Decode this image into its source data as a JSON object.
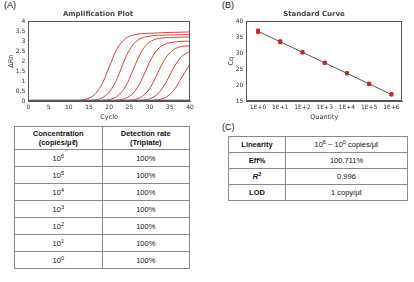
{
  "panel_labels": [
    "(A)",
    "(B)",
    "(C)"
  ],
  "chart_data": [
    {
      "type": "line",
      "title": "Amplification Plot",
      "xlabel": "Cycle",
      "ylabel": "ΔRn",
      "x": [
        0,
        2,
        4,
        6,
        8,
        10,
        12,
        14,
        16,
        18,
        20,
        22,
        24,
        26,
        28,
        30,
        32,
        34,
        36,
        38,
        40
      ],
      "xlim": [
        0,
        40
      ],
      "xticks": [
        0,
        5,
        10,
        15,
        20,
        25,
        30,
        35,
        40
      ],
      "ylim": [
        0,
        4
      ],
      "yticks": [
        0,
        0.5,
        1,
        1.5,
        2,
        2.5,
        3,
        3.5,
        4
      ],
      "grid": false,
      "series": [
        {
          "color": "#e03c3c",
          "values": [
            0,
            0,
            0,
            0,
            0,
            0,
            0.02,
            0.08,
            0.26,
            0.76,
            1.7,
            2.64,
            3.14,
            3.32,
            3.38,
            3.4,
            3.42,
            3.44,
            3.45,
            3.46,
            3.47
          ]
        },
        {
          "color": "#e03c3c",
          "values": [
            0,
            0,
            0,
            0,
            0,
            0,
            0,
            0,
            0.04,
            0.14,
            0.44,
            1.15,
            2.15,
            2.86,
            3.16,
            3.26,
            3.3,
            3.31,
            3.32,
            3.33,
            3.34
          ]
        },
        {
          "color": "#e03c3c",
          "values": [
            0,
            0,
            0,
            0,
            0,
            0,
            0,
            0,
            0,
            0.02,
            0.07,
            0.24,
            0.71,
            1.6,
            2.49,
            2.96,
            3.13,
            3.18,
            3.2,
            3.21,
            3.22
          ]
        },
        {
          "color": "#e03c3c",
          "values": [
            0,
            0,
            0,
            0,
            0,
            0,
            0,
            0,
            0,
            0,
            0,
            0.04,
            0.13,
            0.4,
            1.05,
            1.95,
            2.6,
            2.87,
            2.96,
            3.0,
            3.01
          ]
        },
        {
          "color": "#e03c3c",
          "values": [
            0,
            0,
            0,
            0,
            0,
            0,
            0,
            0,
            0,
            0,
            0,
            0,
            0.02,
            0.06,
            0.21,
            0.62,
            1.4,
            2.18,
            2.59,
            2.74,
            2.78
          ]
        },
        {
          "color": "#e03c3c",
          "values": [
            0,
            0,
            0,
            0,
            0,
            0,
            0,
            0,
            0,
            0,
            0,
            0,
            0,
            0,
            0.03,
            0.11,
            0.35,
            0.91,
            1.69,
            2.25,
            2.49
          ]
        },
        {
          "color": "#e03c3c",
          "values": [
            0,
            0,
            0,
            0,
            0,
            0,
            0,
            0,
            0,
            0,
            0,
            0,
            0,
            0,
            0,
            0.02,
            0.06,
            0.18,
            0.54,
            1.2,
            1.86
          ]
        },
        {
          "color": "#2a2ab8",
          "values": [
            0.04,
            0.04,
            0.04,
            0.04,
            0.04,
            0.04,
            0.04,
            0.04,
            0.04,
            0.04,
            0.04,
            0.04,
            0.04,
            0.04,
            0.04,
            0.04,
            0.04,
            0.04,
            0.04,
            0.04,
            0.04
          ]
        }
      ]
    },
    {
      "type": "scatter",
      "title": "Standard Curve",
      "xlabel": "Quantity",
      "ylabel": "Cq",
      "log": "x",
      "xlim": [
        0.3,
        3000000
      ],
      "xticks": [
        {
          "value": 1,
          "label": "1E+0"
        },
        {
          "value": 10,
          "label": "1E+1"
        },
        {
          "value": 100,
          "label": "1E+2"
        },
        {
          "value": 1000,
          "label": "1E+3"
        },
        {
          "value": 10000,
          "label": "1E+4"
        },
        {
          "value": 100000,
          "label": "1E+5"
        },
        {
          "value": 1000000,
          "label": "1E+6"
        }
      ],
      "ylim": [
        15,
        40
      ],
      "yticks": [
        15,
        20,
        25,
        30,
        35,
        40
      ],
      "grid": false,
      "series": [
        {
          "type": "line",
          "color": "#555555",
          "line_style": "solid",
          "x": [
            1,
            1000000
          ],
          "values": [
            36.9,
            17.06
          ]
        },
        {
          "type": "scatter",
          "color": "#e02020",
          "marker": "square",
          "x": [
            1,
            1,
            1,
            10,
            10,
            10,
            100,
            100,
            100,
            1000,
            1000,
            1000,
            10000,
            10000,
            10000,
            100000,
            100000,
            100000,
            1000000,
            1000000,
            1000000
          ],
          "values": [
            37.2,
            36.6,
            36.9,
            33.5,
            33.8,
            33.4,
            30.4,
            30.2,
            30.3,
            27.0,
            27.1,
            26.9,
            23.7,
            23.6,
            23.8,
            20.4,
            20.3,
            20.5,
            17.1,
            17.0,
            17.2
          ]
        }
      ]
    }
  ],
  "table_a": {
    "header": [
      [
        {
          "text": "Concentration\n(copies/μℓ)"
        }
      ],
      [
        {
          "text": "Detection rate\n(Triplate)"
        }
      ]
    ],
    "rows": [
      [
        [
          {
            "text": "10"
          },
          {
            "sup": "6"
          }
        ],
        [
          {
            "text": "100%"
          }
        ]
      ],
      [
        [
          {
            "text": "10"
          },
          {
            "sup": "5"
          }
        ],
        [
          {
            "text": "100%"
          }
        ]
      ],
      [
        [
          {
            "text": "10"
          },
          {
            "sup": "4"
          }
        ],
        [
          {
            "text": "100%"
          }
        ]
      ],
      [
        [
          {
            "text": "10"
          },
          {
            "sup": "3"
          }
        ],
        [
          {
            "text": "100%"
          }
        ]
      ],
      [
        [
          {
            "text": "10"
          },
          {
            "sup": "2"
          }
        ],
        [
          {
            "text": "100%"
          }
        ]
      ],
      [
        [
          {
            "text": "10"
          },
          {
            "sup": "1"
          }
        ],
        [
          {
            "text": "100%"
          }
        ]
      ],
      [
        [
          {
            "text": "10"
          },
          {
            "sup": "0"
          }
        ],
        [
          {
            "text": "100%"
          }
        ]
      ]
    ]
  },
  "table_c": {
    "rows": [
      [
        [
          {
            "text": "Linearity"
          }
        ],
        [
          {
            "text": "10"
          },
          {
            "sup": "6"
          },
          {
            "text": " ~ 10"
          },
          {
            "sup": "0"
          },
          {
            "text": " copies/μℓ"
          }
        ]
      ],
      [
        [
          {
            "text": "Eff%"
          }
        ],
        [
          {
            "text": "100.711%"
          }
        ]
      ],
      [
        [
          {
            "italic": "R"
          },
          {
            "sup": "2"
          }
        ],
        [
          {
            "text": "0.996"
          }
        ]
      ],
      [
        [
          {
            "text": "LOD"
          }
        ],
        [
          {
            "text": "1 copy/μℓ"
          }
        ]
      ]
    ]
  }
}
